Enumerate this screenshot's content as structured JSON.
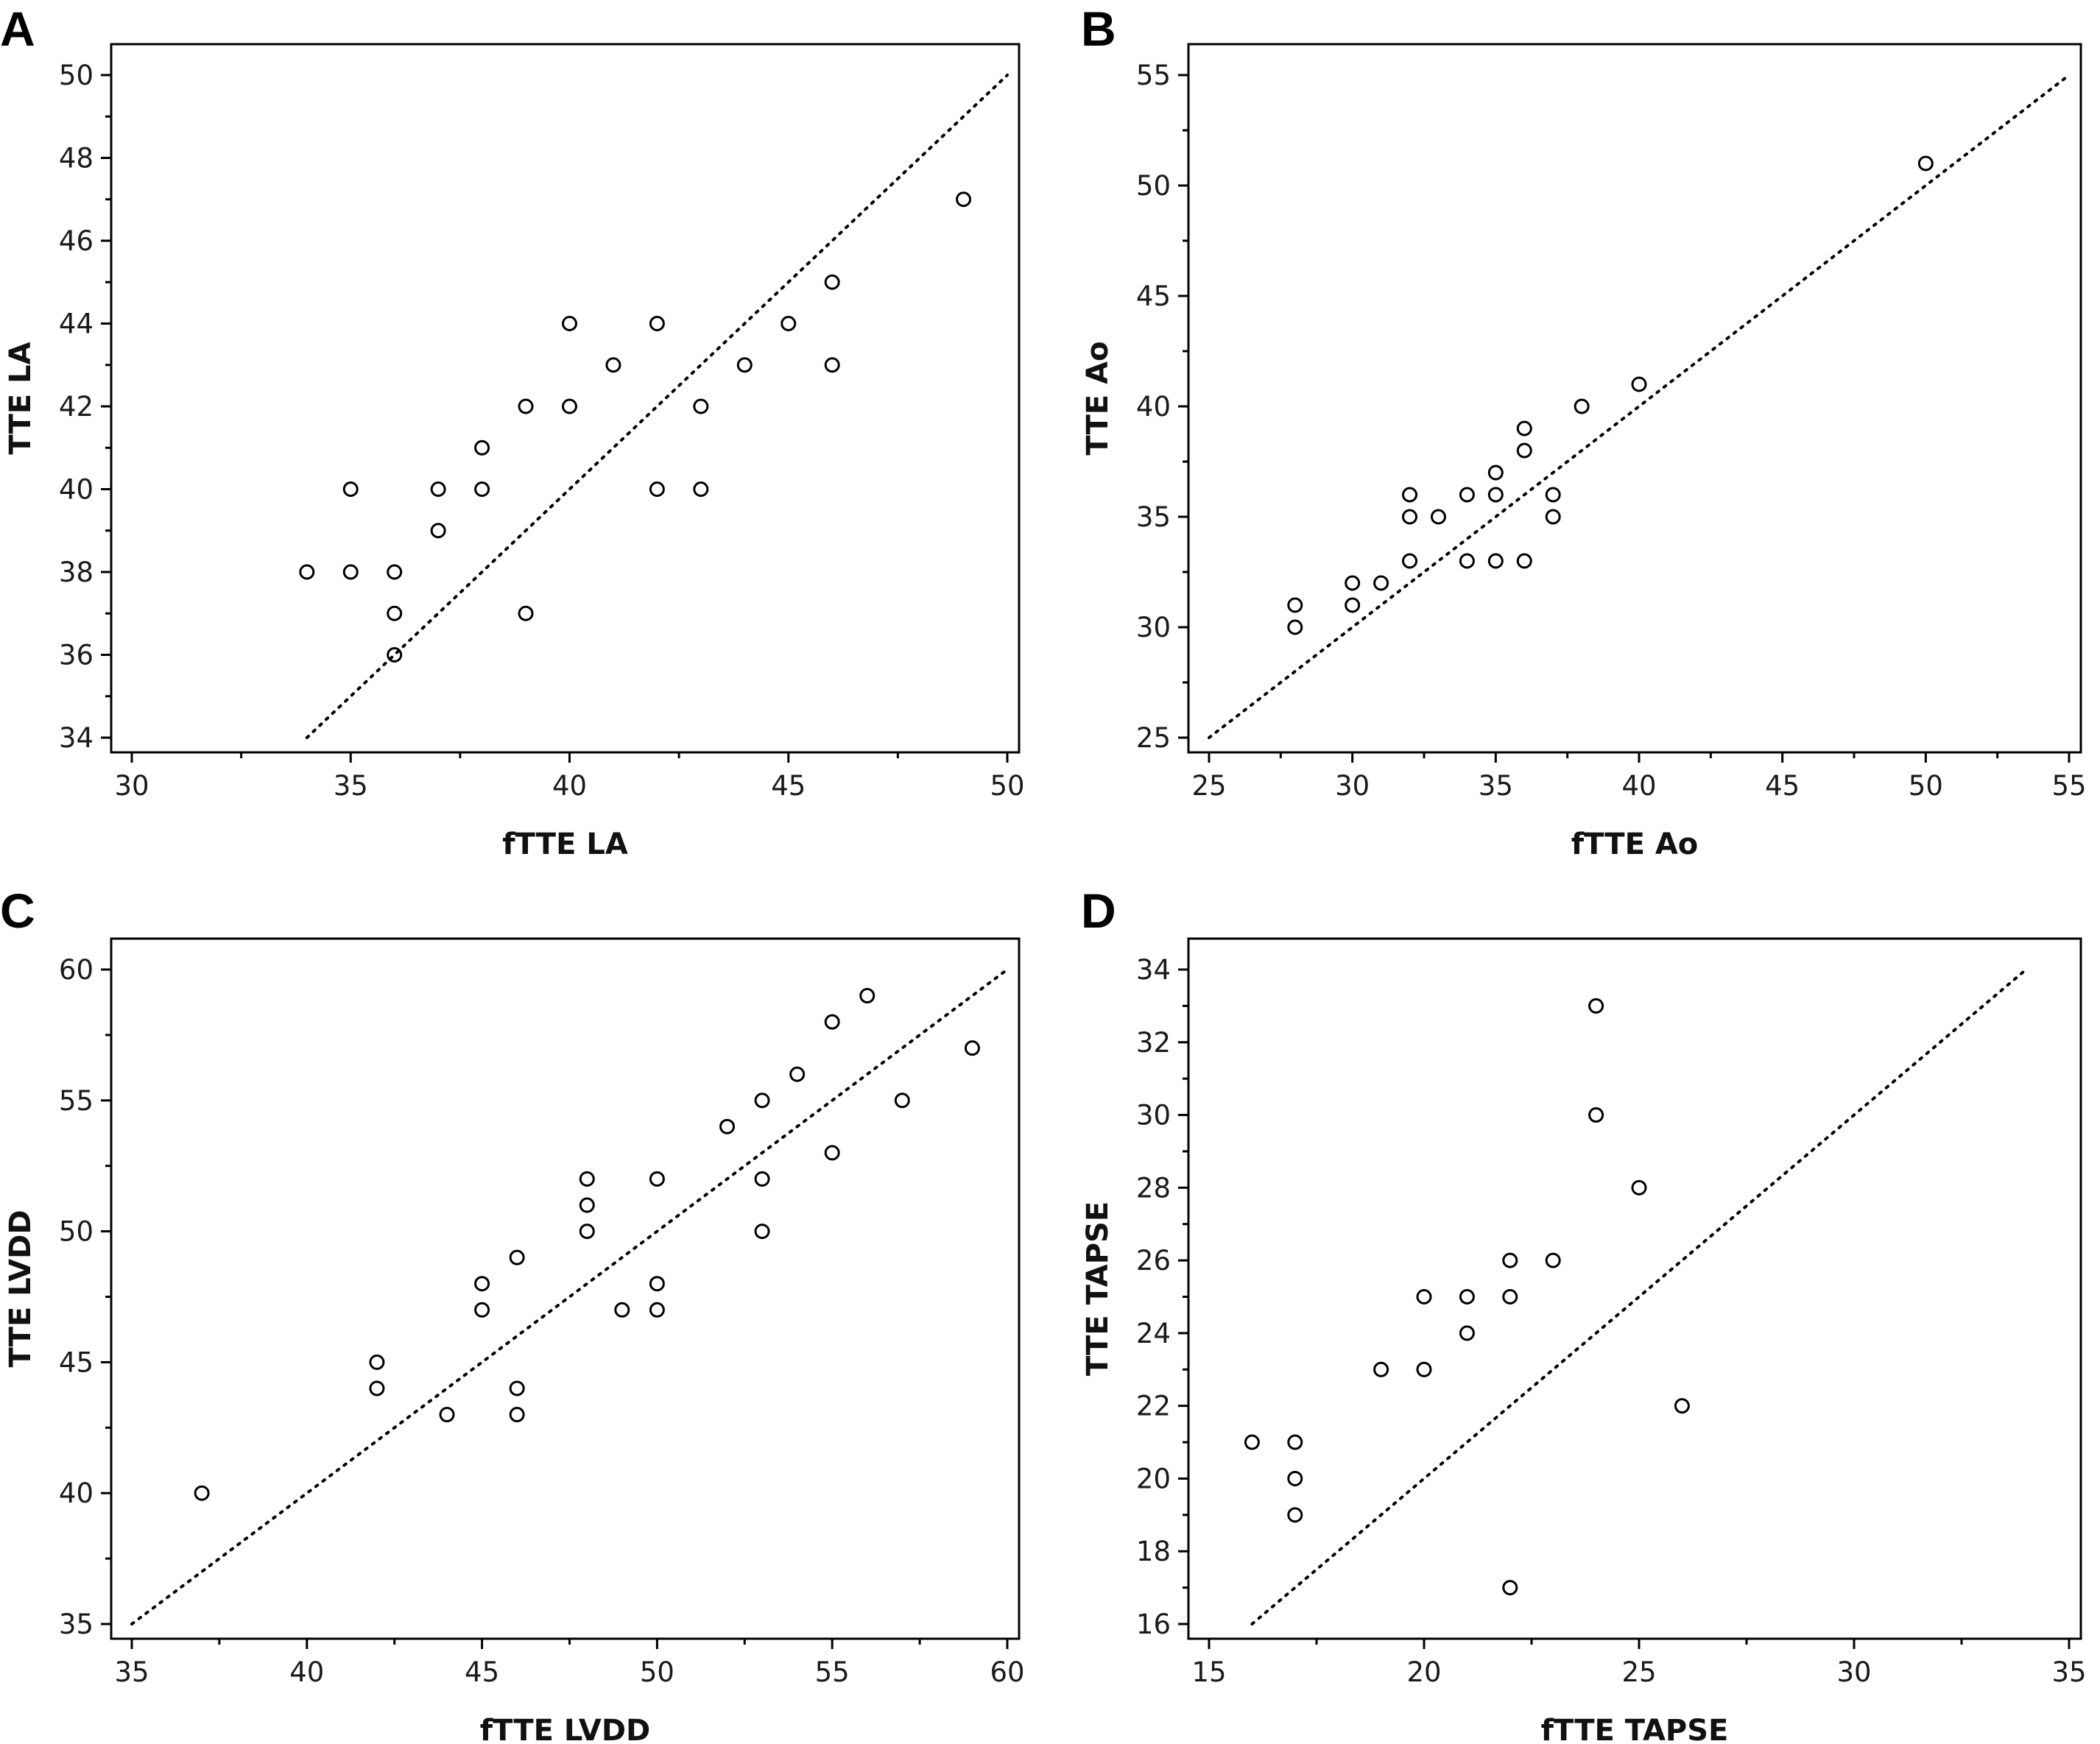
{
  "chart_data": [
    {
      "panel": "A",
      "type": "scatter",
      "xlabel": "fTTE LA",
      "ylabel": "TTE LA",
      "xlim": [
        30,
        50
      ],
      "ylim": [
        34,
        50
      ],
      "xticks": [
        30,
        35,
        40,
        45,
        50
      ],
      "yticks": [
        34,
        36,
        38,
        40,
        42,
        44,
        46,
        48,
        50
      ],
      "identity_line": [
        34,
        50
      ],
      "grid": false,
      "points": [
        [
          34,
          38
        ],
        [
          35,
          40
        ],
        [
          35,
          38
        ],
        [
          36,
          38
        ],
        [
          36,
          37
        ],
        [
          36,
          36
        ],
        [
          37,
          40
        ],
        [
          37,
          39
        ],
        [
          38,
          41
        ],
        [
          38,
          40
        ],
        [
          39,
          42
        ],
        [
          39,
          37
        ],
        [
          40,
          44
        ],
        [
          40,
          42
        ],
        [
          41,
          43
        ],
        [
          42,
          44
        ],
        [
          42,
          40
        ],
        [
          43,
          42
        ],
        [
          43,
          40
        ],
        [
          44,
          43
        ],
        [
          45,
          44
        ],
        [
          46,
          45
        ],
        [
          46,
          43
        ],
        [
          49,
          47
        ]
      ]
    },
    {
      "panel": "B",
      "type": "scatter",
      "xlabel": "fTTE Ao",
      "ylabel": "TTE Ao",
      "xlim": [
        25,
        55
      ],
      "ylim": [
        25,
        55
      ],
      "xticks": [
        25,
        30,
        35,
        40,
        45,
        50,
        55
      ],
      "yticks": [
        25,
        30,
        35,
        40,
        45,
        50,
        55
      ],
      "identity_line": [
        25,
        55
      ],
      "grid": false,
      "points": [
        [
          28,
          31
        ],
        [
          28,
          30
        ],
        [
          30,
          32
        ],
        [
          30,
          31
        ],
        [
          31,
          32
        ],
        [
          32,
          36
        ],
        [
          32,
          35
        ],
        [
          32,
          33
        ],
        [
          33,
          35
        ],
        [
          34,
          36
        ],
        [
          34,
          33
        ],
        [
          35,
          37
        ],
        [
          35,
          36
        ],
        [
          35,
          33
        ],
        [
          36,
          39
        ],
        [
          36,
          38
        ],
        [
          36,
          33
        ],
        [
          37,
          36
        ],
        [
          37,
          35
        ],
        [
          38,
          40
        ],
        [
          40,
          41
        ],
        [
          50,
          51
        ]
      ]
    },
    {
      "panel": "C",
      "type": "scatter",
      "xlabel": "fTTE LVDD",
      "ylabel": "TTE LVDD",
      "xlim": [
        35,
        60
      ],
      "ylim": [
        35,
        60
      ],
      "xticks": [
        35,
        40,
        45,
        50,
        55,
        60
      ],
      "yticks": [
        35,
        40,
        45,
        50,
        55,
        60
      ],
      "identity_line": [
        35,
        60
      ],
      "grid": false,
      "points": [
        [
          37,
          40
        ],
        [
          42,
          45
        ],
        [
          42,
          44
        ],
        [
          44,
          43
        ],
        [
          45,
          48
        ],
        [
          45,
          47
        ],
        [
          46,
          49
        ],
        [
          46,
          44
        ],
        [
          46,
          43
        ],
        [
          48,
          52
        ],
        [
          48,
          51
        ],
        [
          48,
          50
        ],
        [
          49,
          47
        ],
        [
          50,
          52
        ],
        [
          50,
          48
        ],
        [
          50,
          47
        ],
        [
          52,
          54
        ],
        [
          53,
          55
        ],
        [
          53,
          52
        ],
        [
          53,
          50
        ],
        [
          54,
          56
        ],
        [
          55,
          58
        ],
        [
          55,
          53
        ],
        [
          56,
          59
        ],
        [
          57,
          55
        ],
        [
          59,
          57
        ]
      ]
    },
    {
      "panel": "D",
      "type": "scatter",
      "xlabel": "fTTE TAPSE",
      "ylabel": "TTE TAPSE",
      "xlim": [
        15,
        35
      ],
      "ylim": [
        16,
        34
      ],
      "xticks": [
        15,
        20,
        25,
        30,
        35
      ],
      "yticks": [
        16,
        18,
        20,
        22,
        24,
        26,
        28,
        30,
        32,
        34
      ],
      "identity_line": [
        16,
        34
      ],
      "grid": false,
      "points": [
        [
          16,
          21
        ],
        [
          17,
          21
        ],
        [
          17,
          20
        ],
        [
          17,
          19
        ],
        [
          19,
          23
        ],
        [
          20,
          25
        ],
        [
          20,
          23
        ],
        [
          21,
          25
        ],
        [
          21,
          24
        ],
        [
          22,
          26
        ],
        [
          22,
          25
        ],
        [
          22,
          17
        ],
        [
          23,
          26
        ],
        [
          24,
          33
        ],
        [
          24,
          30
        ],
        [
          25,
          28
        ],
        [
          26,
          22
        ]
      ]
    }
  ]
}
